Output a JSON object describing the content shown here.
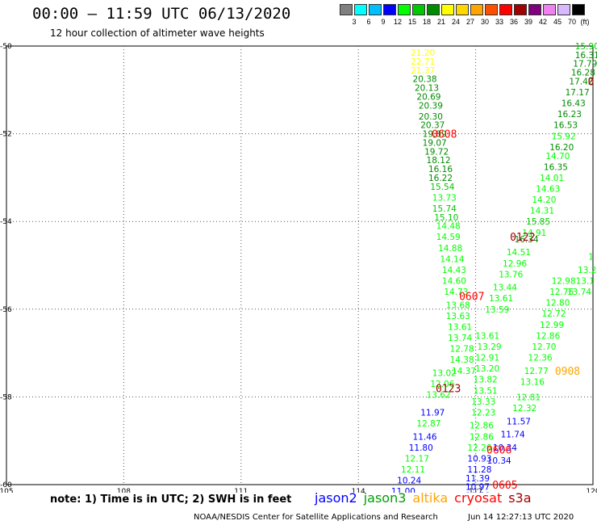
{
  "header": {
    "title": "00:00 — 11:59 UTC 06/13/2020",
    "subtitle": "12 hour collection of altimeter wave heights"
  },
  "color_scale": {
    "unit": "(ft)",
    "bins": [
      {
        "label": "3",
        "color": "#808080"
      },
      {
        "label": "6",
        "color": "#00ffff"
      },
      {
        "label": "9",
        "color": "#00bfff"
      },
      {
        "label": "12",
        "color": "#0000ff"
      },
      {
        "label": "15",
        "color": "#00ff00"
      },
      {
        "label": "18",
        "color": "#00c800"
      },
      {
        "label": "21",
        "color": "#008c00"
      },
      {
        "label": "24",
        "color": "#ffff00"
      },
      {
        "label": "27",
        "color": "#ffd700"
      },
      {
        "label": "30",
        "color": "#ffa500"
      },
      {
        "label": "33",
        "color": "#ff5000"
      },
      {
        "label": "36",
        "color": "#ff0000"
      },
      {
        "label": "39",
        "color": "#a00000"
      },
      {
        "label": "42",
        "color": "#800080"
      },
      {
        "label": "45",
        "color": "#ee82ee"
      },
      {
        "label": "70",
        "color": "#d8b8ff"
      },
      {
        "label": "",
        "color": "#000000"
      }
    ]
  },
  "axes": {
    "lon_ticks": [
      {
        "lon": -105,
        "label": "105"
      },
      {
        "lon": -108,
        "label": "108"
      },
      {
        "lon": -111,
        "label": "111"
      },
      {
        "lon": -114,
        "label": "114"
      },
      {
        "lon": -117,
        "label": "117"
      },
      {
        "lon": -120,
        "label": "120"
      }
    ],
    "lat_ticks": [
      {
        "lat": -50,
        "label": "-50"
      },
      {
        "lat": -52,
        "label": "-52"
      },
      {
        "lat": -54,
        "label": "-54"
      },
      {
        "lat": -56,
        "label": "-56"
      },
      {
        "lat": -58,
        "label": "-58"
      },
      {
        "lat": -60,
        "label": "-60"
      }
    ]
  },
  "pass_labels": [
    {
      "text": "0608",
      "lon": -116.2,
      "lat": -52.0,
      "color": "#ff0000"
    },
    {
      "text": "0122",
      "lon": -118.2,
      "lat": -54.35,
      "color": "#a00000"
    },
    {
      "text": "0607",
      "lon": -116.9,
      "lat": -55.7,
      "color": "#ff0000"
    },
    {
      "text": "0908",
      "lon": -119.35,
      "lat": -57.4,
      "color": "#ffa500"
    },
    {
      "text": "0123",
      "lon": -116.3,
      "lat": -57.8,
      "color": "#a00000"
    },
    {
      "text": "0606",
      "lon": -117.6,
      "lat": -59.2,
      "color": "#ff0000"
    },
    {
      "text": "0605",
      "lon": -117.75,
      "lat": -60.0,
      "color": "#ff0000"
    },
    {
      "text": "0",
      "lon": -119.95,
      "lat": -50.8,
      "color": "#a00000"
    }
  ],
  "tracks": [
    {
      "name": "track-a",
      "points": [
        {
          "lon": -115.65,
          "lat": -50.15,
          "v": "21.20",
          "c": "#ffff00"
        },
        {
          "lon": -115.65,
          "lat": -50.35,
          "v": "22.71",
          "c": "#ffff00"
        },
        {
          "lon": -115.65,
          "lat": -50.55,
          "v": "21.37",
          "c": "#ffff00"
        },
        {
          "lon": -115.7,
          "lat": -50.75,
          "v": "20.38",
          "c": "#008c00"
        },
        {
          "lon": -115.75,
          "lat": -50.95,
          "v": "20.13",
          "c": "#008c00"
        },
        {
          "lon": -115.8,
          "lat": -51.15,
          "v": "20.69",
          "c": "#008c00"
        },
        {
          "lon": -115.85,
          "lat": -51.35,
          "v": "20.39",
          "c": "#008c00"
        },
        {
          "lon": -115.85,
          "lat": -51.6,
          "v": "20.30",
          "c": "#008c00"
        },
        {
          "lon": -115.9,
          "lat": -51.8,
          "v": "20.37",
          "c": "#008c00"
        },
        {
          "lon": -115.95,
          "lat": -52.0,
          "v": "19.89",
          "c": "#008c00"
        },
        {
          "lon": -115.95,
          "lat": -52.2,
          "v": "19.07",
          "c": "#008c00"
        },
        {
          "lon": -116.0,
          "lat": -52.4,
          "v": "19.72",
          "c": "#008c00"
        },
        {
          "lon": -116.05,
          "lat": -52.6,
          "v": "18.12",
          "c": "#008c00"
        },
        {
          "lon": -116.1,
          "lat": -52.8,
          "v": "16.16",
          "c": "#008c00"
        },
        {
          "lon": -116.1,
          "lat": -53.0,
          "v": "16.22",
          "c": "#008c00"
        },
        {
          "lon": -116.15,
          "lat": -53.2,
          "v": "15.54",
          "c": "#00c800"
        },
        {
          "lon": -116.2,
          "lat": -53.45,
          "v": "13.73",
          "c": "#00ff00"
        },
        {
          "lon": -116.2,
          "lat": -53.7,
          "v": "15.74",
          "c": "#00c800"
        },
        {
          "lon": -116.25,
          "lat": -53.9,
          "v": "15.10",
          "c": "#00c800"
        },
        {
          "lon": -116.3,
          "lat": -54.1,
          "v": "14.48",
          "c": "#00ff00"
        },
        {
          "lon": -116.3,
          "lat": -54.35,
          "v": "14.59",
          "c": "#00ff00"
        },
        {
          "lon": -116.35,
          "lat": -54.6,
          "v": "14.88",
          "c": "#00ff00"
        },
        {
          "lon": -116.4,
          "lat": -54.85,
          "v": "14.14",
          "c": "#00ff00"
        },
        {
          "lon": -116.45,
          "lat": -55.1,
          "v": "14.43",
          "c": "#00ff00"
        },
        {
          "lon": -116.45,
          "lat": -55.35,
          "v": "14.60",
          "c": "#00ff00"
        },
        {
          "lon": -116.5,
          "lat": -55.6,
          "v": "14.73",
          "c": "#00ff00"
        },
        {
          "lon": -116.55,
          "lat": -55.9,
          "v": "13.68",
          "c": "#00ff00"
        },
        {
          "lon": -116.55,
          "lat": -56.15,
          "v": "13.63",
          "c": "#00ff00"
        },
        {
          "lon": -116.6,
          "lat": -56.4,
          "v": "13.61",
          "c": "#00ff00"
        },
        {
          "lon": -116.6,
          "lat": -56.65,
          "v": "13.74",
          "c": "#00ff00"
        },
        {
          "lon": -116.65,
          "lat": -56.9,
          "v": "12.78",
          "c": "#00ff00"
        },
        {
          "lon": -116.65,
          "lat": -57.15,
          "v": "14.38",
          "c": "#00ff00"
        },
        {
          "lon": -116.7,
          "lat": -57.4,
          "v": "14.37",
          "c": "#00ff00"
        }
      ]
    },
    {
      "name": "track-b",
      "points": [
        {
          "lon": -116.2,
          "lat": -57.45,
          "v": "13.02",
          "c": "#00ff00"
        },
        {
          "lon": -116.15,
          "lat": -57.7,
          "v": "12.06",
          "c": "#00ff00"
        },
        {
          "lon": -116.05,
          "lat": -57.95,
          "v": "13.62",
          "c": "#00ff00"
        },
        {
          "lon": -115.9,
          "lat": -58.35,
          "v": "11.97",
          "c": "#0000ff"
        },
        {
          "lon": -115.8,
          "lat": -58.6,
          "v": "12.87",
          "c": "#00ff00"
        },
        {
          "lon": -115.7,
          "lat": -58.9,
          "v": "11.46",
          "c": "#0000ff"
        },
        {
          "lon": -115.6,
          "lat": -59.15,
          "v": "11.80",
          "c": "#0000ff"
        },
        {
          "lon": -115.5,
          "lat": -59.4,
          "v": "12.17",
          "c": "#00ff00"
        },
        {
          "lon": -115.4,
          "lat": -59.65,
          "v": "12.11",
          "c": "#00ff00"
        },
        {
          "lon": -115.3,
          "lat": -59.9,
          "v": "10.24",
          "c": "#0000ff"
        },
        {
          "lon": -115.15,
          "lat": -60.15,
          "v": "11.00",
          "c": "#0000ff"
        }
      ]
    },
    {
      "name": "track-c",
      "points": [
        {
          "lon": -119.85,
          "lat": -50.0,
          "v": "15.90",
          "c": "#00c800"
        },
        {
          "lon": -119.85,
          "lat": -50.2,
          "v": "16.31",
          "c": "#008c00"
        },
        {
          "lon": -119.8,
          "lat": -50.4,
          "v": "17.79",
          "c": "#008c00"
        },
        {
          "lon": -119.75,
          "lat": -50.6,
          "v": "16.28",
          "c": "#008c00"
        },
        {
          "lon": -119.7,
          "lat": -50.8,
          "v": "17.42",
          "c": "#008c00"
        },
        {
          "lon": -119.6,
          "lat": -51.05,
          "v": "17.17",
          "c": "#008c00"
        },
        {
          "lon": -119.5,
          "lat": -51.3,
          "v": "16.43",
          "c": "#008c00"
        },
        {
          "lon": -119.4,
          "lat": -51.55,
          "v": "16.23",
          "c": "#008c00"
        },
        {
          "lon": -119.3,
          "lat": -51.8,
          "v": "16.53",
          "c": "#008c00"
        },
        {
          "lon": -119.25,
          "lat": -52.05,
          "v": "15.92",
          "c": "#00ff00"
        },
        {
          "lon": -119.2,
          "lat": -52.3,
          "v": "16.20",
          "c": "#008c00"
        },
        {
          "lon": -119.1,
          "lat": -52.5,
          "v": "14.70",
          "c": "#00ff00"
        },
        {
          "lon": -119.05,
          "lat": -52.75,
          "v": "16.35",
          "c": "#008c00"
        },
        {
          "lon": -118.95,
          "lat": -53.0,
          "v": "14.01",
          "c": "#00ff00"
        },
        {
          "lon": -118.85,
          "lat": -53.25,
          "v": "14.63",
          "c": "#00ff00"
        },
        {
          "lon": -118.75,
          "lat": -53.5,
          "v": "14.20",
          "c": "#00ff00"
        },
        {
          "lon": -118.7,
          "lat": -53.75,
          "v": "14.31",
          "c": "#00ff00"
        },
        {
          "lon": -118.6,
          "lat": -54.0,
          "v": "15.85",
          "c": "#00c800"
        },
        {
          "lon": -118.5,
          "lat": -54.25,
          "v": "14.91",
          "c": "#00ff00"
        },
        {
          "lon": -118.3,
          "lat": -54.4,
          "v": "16.34",
          "c": "#008c00"
        },
        {
          "lon": -118.1,
          "lat": -54.7,
          "v": "14.51",
          "c": "#00ff00"
        },
        {
          "lon": -118.0,
          "lat": -54.95,
          "v": "12.96",
          "c": "#00ff00"
        },
        {
          "lon": -117.9,
          "lat": -55.2,
          "v": "13.76",
          "c": "#00ff00"
        },
        {
          "lon": -117.75,
          "lat": -55.5,
          "v": "13.44",
          "c": "#00ff00"
        },
        {
          "lon": -117.65,
          "lat": -55.75,
          "v": "13.61",
          "c": "#00ff00"
        },
        {
          "lon": -117.55,
          "lat": -56.0,
          "v": "13.59",
          "c": "#00ff00"
        }
      ]
    },
    {
      "name": "track-d",
      "points": [
        {
          "lon": -117.3,
          "lat": -56.6,
          "v": "13.61",
          "c": "#00ff00"
        },
        {
          "lon": -117.35,
          "lat": -56.85,
          "v": "13.29",
          "c": "#00ff00"
        },
        {
          "lon": -117.3,
          "lat": -57.1,
          "v": "12.91",
          "c": "#00ff00"
        },
        {
          "lon": -117.3,
          "lat": -57.35,
          "v": "13.20",
          "c": "#00ff00"
        },
        {
          "lon": -117.25,
          "lat": -57.6,
          "v": "13.82",
          "c": "#00ff00"
        },
        {
          "lon": -117.25,
          "lat": -57.85,
          "v": "13.51",
          "c": "#00ff00"
        },
        {
          "lon": -117.2,
          "lat": -58.1,
          "v": "13.33",
          "c": "#00ff00"
        },
        {
          "lon": -117.2,
          "lat": -58.35,
          "v": "12.23",
          "c": "#00ff00"
        },
        {
          "lon": -117.15,
          "lat": -58.65,
          "v": "12.86",
          "c": "#00ff00"
        },
        {
          "lon": -117.15,
          "lat": -58.9,
          "v": "12.86",
          "c": "#00ff00"
        },
        {
          "lon": -117.1,
          "lat": -59.15,
          "v": "12.26",
          "c": "#00ff00"
        },
        {
          "lon": -117.1,
          "lat": -59.4,
          "v": "10.93",
          "c": "#0000ff"
        },
        {
          "lon": -117.1,
          "lat": -59.65,
          "v": "11.28",
          "c": "#0000ff"
        },
        {
          "lon": -117.05,
          "lat": -59.85,
          "v": "11.39",
          "c": "#0000ff"
        },
        {
          "lon": -117.05,
          "lat": -60.05,
          "v": "10.97",
          "c": "#0000ff"
        },
        {
          "lon": -117.05,
          "lat": -60.25,
          "v": "10.56",
          "c": "#0000ff"
        }
      ]
    },
    {
      "name": "track-e",
      "points": [
        {
          "lon": -119.25,
          "lat": -55.35,
          "v": "12.98",
          "c": "#00ff00"
        },
        {
          "lon": -119.2,
          "lat": -55.6,
          "v": "12.76",
          "c": "#00ff00"
        },
        {
          "lon": -119.1,
          "lat": -55.85,
          "v": "12.80",
          "c": "#00ff00"
        },
        {
          "lon": -119.0,
          "lat": -56.1,
          "v": "12.72",
          "c": "#00ff00"
        },
        {
          "lon": -118.95,
          "lat": -56.35,
          "v": "12.99",
          "c": "#00ff00"
        },
        {
          "lon": -118.85,
          "lat": -56.6,
          "v": "12.86",
          "c": "#00ff00"
        },
        {
          "lon": -118.75,
          "lat": -56.85,
          "v": "12.70",
          "c": "#00ff00"
        },
        {
          "lon": -118.65,
          "lat": -57.1,
          "v": "12.36",
          "c": "#00ff00"
        },
        {
          "lon": -118.55,
          "lat": -57.4,
          "v": "12.77",
          "c": "#00ff00"
        },
        {
          "lon": -118.45,
          "lat": -57.65,
          "v": "13.16",
          "c": "#00ff00"
        },
        {
          "lon": -118.35,
          "lat": -58.0,
          "v": "12.81",
          "c": "#00ff00"
        },
        {
          "lon": -118.25,
          "lat": -58.25,
          "v": "12.32",
          "c": "#00ff00"
        },
        {
          "lon": -118.1,
          "lat": -58.55,
          "v": "11.57",
          "c": "#0000ff"
        },
        {
          "lon": -117.95,
          "lat": -58.85,
          "v": "11.74",
          "c": "#0000ff"
        },
        {
          "lon": -117.75,
          "lat": -59.15,
          "v": "10.34",
          "c": "#0000ff"
        },
        {
          "lon": -117.6,
          "lat": -59.45,
          "v": "10.34",
          "c": "#0000ff"
        }
      ]
    },
    {
      "name": "track-f",
      "points": [
        {
          "lon": -119.95,
          "lat": -54.8,
          "v": "1",
          "c": "#00ff00"
        },
        {
          "lon": -119.85,
          "lat": -55.1,
          "v": "13.2",
          "c": "#00ff00"
        },
        {
          "lon": -119.8,
          "lat": -55.35,
          "v": "13.1",
          "c": "#00ff00"
        },
        {
          "lon": -119.65,
          "lat": -55.6,
          "v": "13.74",
          "c": "#00ff00"
        }
      ]
    }
  ],
  "footer": {
    "note": "note:  1) Time is in UTC;  2) SWH is in feet",
    "legend": [
      {
        "label": "jason2",
        "color": "#0000ff"
      },
      {
        "label": "jason3",
        "color": "#00a000"
      },
      {
        "label": "altika",
        "color": "#ffa500"
      },
      {
        "label": "cryosat",
        "color": "#ff0000"
      },
      {
        "label": "s3a",
        "color": "#a00000"
      }
    ],
    "credit": "NOAA/NESDIS Center for Satellite Applications and Research",
    "stamp": "Jun 14 12:27:13 UTC 2020"
  }
}
